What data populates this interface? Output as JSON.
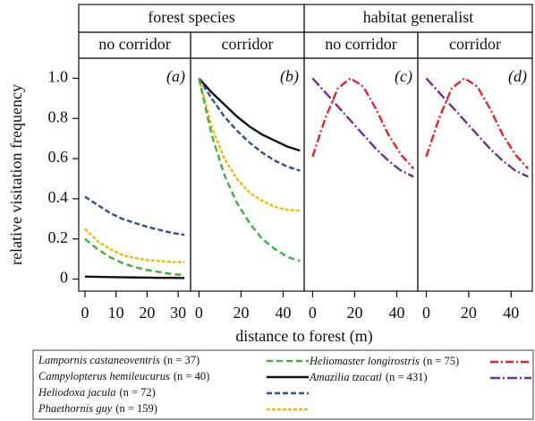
{
  "headers": [
    "forest species",
    "habitat generalist"
  ],
  "y_label": "relative visitation frequency",
  "x_label": "distance to forest (m)",
  "legend": [
    {
      "name": "Lampornis castaneoventris",
      "n": "(n = 37)",
      "color": "#3cb43c",
      "dash": "7,4"
    },
    {
      "name": "Campylopterus hemileucurus",
      "n": "(n = 40)",
      "color": "#111111",
      "dash": "none"
    },
    {
      "name": "Heliodoxa jacula",
      "n": "(n = 72)",
      "color": "#2b4ea0",
      "dash": "6,3"
    },
    {
      "name": "Phaethornis guy",
      "n": "(n = 159)",
      "color": "#f5b800",
      "dash": "4,2"
    },
    {
      "name": "Heliomaster longirostris",
      "n": "(n = 75)",
      "color": "#e8232a",
      "dash": "9,3,2,3"
    },
    {
      "name": "Amazilia tzacatl",
      "n": "(n = 431)",
      "color": "#7b2a98",
      "dash": "11,3,2,3"
    }
  ],
  "chart_data": [
    {
      "type": "line",
      "title": "no corridor",
      "panel_label": "(a)",
      "x": [
        0,
        4,
        8,
        12,
        16,
        20,
        24,
        28,
        32
      ],
      "xlim": [
        -2,
        34
      ],
      "xticks": [
        0,
        10,
        20,
        30
      ],
      "ylim": [
        -0.06,
        1.1
      ],
      "yticks": [
        0,
        0.2,
        0.4,
        0.6,
        0.8,
        {
          "value": 1,
          "label": "1.0"
        }
      ],
      "series": [
        {
          "name": "Heliodoxa jacula",
          "values": [
            0.41,
            0.37,
            0.33,
            0.3,
            0.28,
            0.26,
            0.245,
            0.23,
            0.22
          ]
        },
        {
          "name": "Phaethornis guy",
          "values": [
            0.25,
            0.19,
            0.15,
            0.12,
            0.105,
            0.095,
            0.09,
            0.085,
            0.085
          ]
        },
        {
          "name": "Lampornis castaneoventris",
          "values": [
            0.2,
            0.15,
            0.11,
            0.08,
            0.06,
            0.045,
            0.035,
            0.025,
            0.02
          ]
        },
        {
          "name": "Campylopterus hemileucurus",
          "values": [
            0.012,
            0.011,
            0.01,
            0.009,
            0.008,
            0.007,
            0.006,
            0.006,
            0.005
          ]
        }
      ]
    },
    {
      "type": "line",
      "title": "corridor",
      "panel_label": "(b)",
      "x": [
        0,
        6,
        12,
        18,
        24,
        30,
        36,
        42,
        48
      ],
      "xlim": [
        -4,
        50
      ],
      "xticks": [
        0,
        20,
        40
      ],
      "ylim": [
        -0.06,
        1.1
      ],
      "series": [
        {
          "name": "Campylopterus hemileucurus",
          "values": [
            1.0,
            0.93,
            0.87,
            0.81,
            0.76,
            0.72,
            0.69,
            0.66,
            0.64
          ]
        },
        {
          "name": "Heliodoxa jacula",
          "values": [
            1.0,
            0.9,
            0.81,
            0.74,
            0.68,
            0.63,
            0.59,
            0.56,
            0.54
          ]
        },
        {
          "name": "Phaethornis guy",
          "values": [
            1.0,
            0.76,
            0.6,
            0.5,
            0.43,
            0.39,
            0.36,
            0.345,
            0.34
          ]
        },
        {
          "name": "Lampornis castaneoventris",
          "values": [
            1.0,
            0.72,
            0.52,
            0.38,
            0.28,
            0.2,
            0.15,
            0.11,
            0.09
          ]
        }
      ]
    },
    {
      "type": "line",
      "title": "no corridor",
      "panel_label": "(c)",
      "x": [
        0,
        6,
        12,
        18,
        24,
        30,
        36,
        42,
        48
      ],
      "xlim": [
        -4,
        50
      ],
      "xticks": [
        0,
        20,
        40
      ],
      "ylim": [
        -0.06,
        1.1
      ],
      "series": [
        {
          "name": "Heliomaster longirostris",
          "values": [
            0.61,
            0.8,
            0.95,
            1.0,
            0.96,
            0.85,
            0.72,
            0.62,
            0.55
          ]
        },
        {
          "name": "Amazilia tzacatl",
          "values": [
            1.0,
            0.93,
            0.86,
            0.79,
            0.72,
            0.65,
            0.59,
            0.54,
            0.51
          ]
        }
      ]
    },
    {
      "type": "line",
      "title": "corridor",
      "panel_label": "(d)",
      "x": [
        0,
        6,
        12,
        18,
        24,
        30,
        36,
        42,
        48
      ],
      "xlim": [
        -4,
        50
      ],
      "xticks": [
        0,
        20,
        40
      ],
      "ylim": [
        -0.06,
        1.1
      ],
      "series": [
        {
          "name": "Heliomaster longirostris",
          "values": [
            0.61,
            0.8,
            0.95,
            1.0,
            0.96,
            0.85,
            0.72,
            0.62,
            0.55
          ]
        },
        {
          "name": "Amazilia tzacatl",
          "values": [
            1.0,
            0.93,
            0.86,
            0.79,
            0.72,
            0.65,
            0.59,
            0.54,
            0.51
          ]
        }
      ]
    }
  ]
}
